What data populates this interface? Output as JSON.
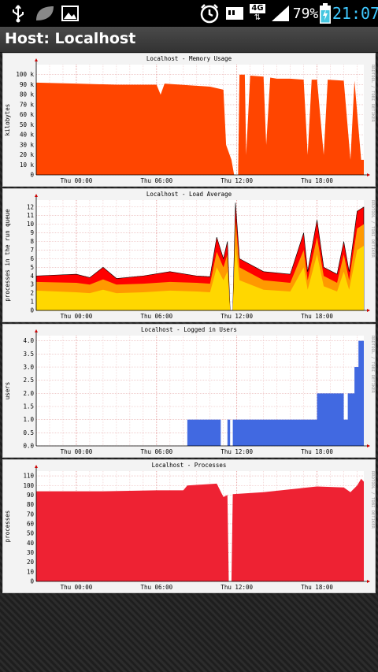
{
  "status_bar": {
    "battery": "79%",
    "time": "21:07",
    "network": "4G",
    "icons": [
      "usb-icon",
      "leaf-icon",
      "image-icon",
      "alarm-icon",
      "sd-card-icon",
      "network-4g-icon",
      "signal-icon",
      "battery-charging-icon"
    ]
  },
  "app_title": "Host: Localhost",
  "side_label": "RRDTOOL / TOBI OETIKER",
  "chart_data": [
    {
      "type": "area",
      "title": "Localhost - Memory Usage",
      "ylabel": "kilobytes",
      "ylim": [
        0,
        110
      ],
      "yticks": [
        "0",
        "10 k",
        "20 k",
        "30 k",
        "40 k",
        "50 k",
        "60 k",
        "70 k",
        "80 k",
        "90 k",
        "100 k"
      ],
      "xticks": [
        "Thu 00:00",
        "Thu 06:00",
        "Thu 12:00",
        "Thu 18:00"
      ],
      "x_hours": [
        -3,
        21.5
      ],
      "color": "#ff4500",
      "series": [
        {
          "values": [
            [
              -3,
              92
            ],
            [
              0,
              91
            ],
            [
              3,
              90
            ],
            [
              6,
              90
            ],
            [
              6.3,
              80
            ],
            [
              6.6,
              91
            ],
            [
              10,
              88
            ],
            [
              11,
              85
            ],
            [
              11.2,
              30
            ],
            [
              11.6,
              15
            ],
            [
              11.8,
              0
            ],
            [
              12.1,
              0
            ],
            [
              12.2,
              100
            ],
            [
              12.6,
              100
            ],
            [
              12.7,
              20
            ],
            [
              13,
              99
            ],
            [
              14,
              98
            ],
            [
              14.2,
              30
            ],
            [
              14.5,
              97
            ],
            [
              15,
              96
            ],
            [
              16,
              96
            ],
            [
              17,
              95
            ],
            [
              17.3,
              20
            ],
            [
              17.6,
              95
            ],
            [
              18,
              95
            ],
            [
              18.5,
              20
            ],
            [
              18.8,
              95
            ],
            [
              20,
              94
            ],
            [
              20.5,
              15
            ],
            [
              20.8,
              94
            ],
            [
              21.3,
              15
            ],
            [
              21.5,
              15
            ]
          ]
        }
      ]
    },
    {
      "type": "area",
      "title": "Localhost - Load Average",
      "ylabel": "processes in the run queue",
      "ylim": [
        0,
        12.8
      ],
      "yticks": [
        "0",
        "1",
        "2",
        "3",
        "4",
        "5",
        "6",
        "7",
        "8",
        "9",
        "10",
        "11",
        "12"
      ],
      "xticks": [
        "Thu 00:00",
        "Thu 06:00",
        "Thu 12:00",
        "Thu 18:00"
      ],
      "x_hours": [
        -3,
        21.5
      ],
      "series": [
        {
          "color": "#ff0000",
          "values": [
            [
              -3,
              4
            ],
            [
              0,
              4.2
            ],
            [
              1,
              3.8
            ],
            [
              2,
              5
            ],
            [
              3,
              3.7
            ],
            [
              5,
              4
            ],
            [
              7,
              4.5
            ],
            [
              9,
              4
            ],
            [
              10,
              3.9
            ],
            [
              10.5,
              8.5
            ],
            [
              11,
              6
            ],
            [
              11.3,
              8
            ],
            [
              11.5,
              0
            ],
            [
              11.7,
              0
            ],
            [
              11.9,
              12.5
            ],
            [
              12.2,
              6
            ],
            [
              14,
              4.5
            ],
            [
              16,
              4.2
            ],
            [
              17,
              9
            ],
            [
              17.3,
              4.5
            ],
            [
              18,
              10.5
            ],
            [
              18.5,
              5
            ],
            [
              19.5,
              4.2
            ],
            [
              20,
              8
            ],
            [
              20.4,
              4.5
            ],
            [
              21,
              11.5
            ],
            [
              21.5,
              12
            ]
          ]
        },
        {
          "color": "#ff9900",
          "values": [
            [
              -3,
              3.3
            ],
            [
              0,
              3.2
            ],
            [
              1,
              3
            ],
            [
              2,
              3.6
            ],
            [
              3,
              3
            ],
            [
              5,
              3.1
            ],
            [
              7,
              3.3
            ],
            [
              9,
              3.2
            ],
            [
              10,
              3.1
            ],
            [
              10.5,
              6.8
            ],
            [
              11,
              5
            ],
            [
              11.3,
              6.5
            ],
            [
              11.5,
              0
            ],
            [
              11.7,
              0
            ],
            [
              11.9,
              10.5
            ],
            [
              12.2,
              5
            ],
            [
              14,
              3.5
            ],
            [
              16,
              3.2
            ],
            [
              17,
              7
            ],
            [
              17.3,
              3.5
            ],
            [
              18,
              8.5
            ],
            [
              18.5,
              4
            ],
            [
              19.5,
              3.2
            ],
            [
              20,
              6.5
            ],
            [
              20.4,
              3.5
            ],
            [
              21,
              9.5
            ],
            [
              21.5,
              10
            ]
          ]
        },
        {
          "color": "#ffd700",
          "values": [
            [
              -3,
              2.3
            ],
            [
              0,
              2.1
            ],
            [
              1,
              2
            ],
            [
              2,
              2.4
            ],
            [
              3,
              2
            ],
            [
              5,
              2.1
            ],
            [
              7,
              2.3
            ],
            [
              9,
              2.2
            ],
            [
              10,
              2.1
            ],
            [
              10.5,
              5
            ],
            [
              11,
              3.5
            ],
            [
              11.3,
              4.5
            ],
            [
              11.5,
              0
            ],
            [
              11.7,
              0
            ],
            [
              11.9,
              7.5
            ],
            [
              12.2,
              3.5
            ],
            [
              14,
              2.4
            ],
            [
              16,
              2.2
            ],
            [
              17,
              5
            ],
            [
              17.3,
              2.4
            ],
            [
              18,
              6.5
            ],
            [
              18.5,
              2.8
            ],
            [
              19.5,
              2.2
            ],
            [
              20,
              4.5
            ],
            [
              20.4,
              2.4
            ],
            [
              21,
              7
            ],
            [
              21.5,
              7.5
            ]
          ]
        }
      ]
    },
    {
      "type": "area",
      "title": "Localhost - Logged in Users",
      "ylabel": "users",
      "ylim": [
        0,
        4.2
      ],
      "yticks": [
        "0.0",
        "0.5",
        "1.0",
        "1.5",
        "2.0",
        "2.5",
        "3.0",
        "3.5",
        "4.0"
      ],
      "xticks": [
        "Thu 00:00",
        "Thu 06:00",
        "Thu 12:00",
        "Thu 18:00"
      ],
      "x_hours": [
        -3,
        21.5
      ],
      "color": "#4169e1",
      "series": [
        {
          "values": [
            [
              -3,
              0
            ],
            [
              8.3,
              0
            ],
            [
              8.3,
              1
            ],
            [
              10.8,
              1
            ],
            [
              10.8,
              0
            ],
            [
              11.3,
              0
            ],
            [
              11.3,
              1
            ],
            [
              11.5,
              1
            ],
            [
              11.5,
              0
            ],
            [
              11.7,
              0
            ],
            [
              11.7,
              1
            ],
            [
              18,
              1
            ],
            [
              18,
              2
            ],
            [
              20,
              2
            ],
            [
              20,
              1
            ],
            [
              20.3,
              1
            ],
            [
              20.3,
              2
            ],
            [
              20.8,
              2
            ],
            [
              20.8,
              3
            ],
            [
              21.1,
              3
            ],
            [
              21.1,
              4
            ],
            [
              21.5,
              4
            ]
          ]
        }
      ]
    },
    {
      "type": "area",
      "title": "Localhost - Processes",
      "ylabel": "processes",
      "ylim": [
        0,
        115
      ],
      "yticks": [
        "0",
        "10",
        "20",
        "30",
        "40",
        "50",
        "60",
        "70",
        "80",
        "90",
        "100",
        "110"
      ],
      "xticks": [
        "Thu 00:00",
        "Thu 06:00",
        "Thu 12:00",
        "Thu 18:00"
      ],
      "x_hours": [
        -3,
        21.5
      ],
      "color": "#ee2233",
      "series": [
        {
          "values": [
            [
              -3,
              94
            ],
            [
              2,
              94
            ],
            [
              6,
              95
            ],
            [
              8,
              95
            ],
            [
              8.3,
              100
            ],
            [
              10.5,
              102
            ],
            [
              11,
              88
            ],
            [
              11.3,
              90
            ],
            [
              11.4,
              0
            ],
            [
              11.6,
              0
            ],
            [
              11.7,
              91
            ],
            [
              14,
              93
            ],
            [
              16,
              96
            ],
            [
              18,
              99
            ],
            [
              20,
              98
            ],
            [
              20.5,
              93
            ],
            [
              21,
              100
            ],
            [
              21.3,
              107
            ],
            [
              21.5,
              104
            ]
          ]
        }
      ]
    }
  ]
}
